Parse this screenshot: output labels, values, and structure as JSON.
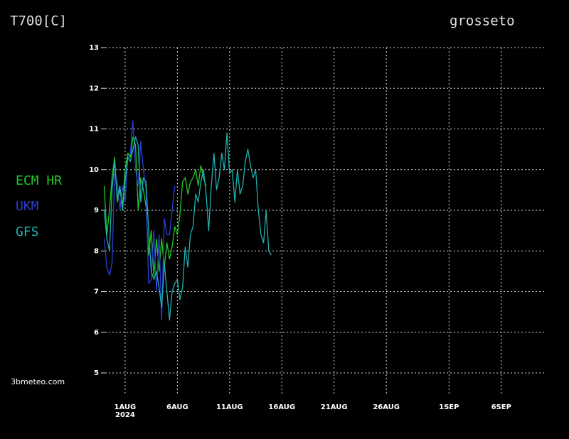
{
  "chart_data": {
    "type": "line",
    "title": "T700[C]",
    "location": "grosseto",
    "credit": "3bmeteo.com",
    "x_year_label": "2024",
    "x": [
      -1.0,
      -0.75,
      -0.5,
      -0.25,
      0,
      0.25,
      0.5,
      0.75,
      1.0,
      1.25,
      1.5,
      1.75,
      2.0,
      2.25,
      2.5,
      2.75,
      3.0,
      3.25,
      3.5,
      3.75,
      4.0,
      4.25,
      4.5,
      4.75,
      5.0,
      5.25,
      5.5,
      5.75,
      6.0,
      6.25,
      6.5,
      6.75,
      7.0,
      7.25,
      7.5,
      7.75,
      8.0,
      8.25,
      8.5,
      8.75,
      9.0,
      9.25,
      9.5,
      9.75,
      10.0,
      10.25,
      10.5,
      10.75,
      11.0,
      11.25,
      11.5,
      11.75,
      12.0,
      12.25,
      12.5,
      12.75,
      13.0,
      13.25,
      13.5,
      13.75,
      14.0,
      14.25,
      14.5,
      14.75,
      15.0
    ],
    "series": [
      {
        "name": "ECM HR",
        "color": "#22c922",
        "values": [
          9.6,
          8.4,
          9.0,
          9.8,
          10.3,
          9.2,
          9.5,
          9.1,
          10.0,
          10.4,
          10.3,
          10.8,
          10.6,
          9.0,
          9.8,
          9.5,
          9.1,
          7.9,
          8.5,
          7.4,
          8.3,
          7.5,
          8.3,
          7.6,
          8.2,
          7.8,
          8.1,
          8.6,
          8.4,
          8.9,
          9.7,
          9.8,
          9.4,
          9.7,
          9.8,
          10.0,
          9.6,
          10.1,
          9.8,
          9.6,
          null,
          null,
          null,
          null,
          null,
          null,
          null,
          null,
          null,
          null,
          null,
          null,
          null,
          null,
          null,
          null,
          null,
          null,
          null,
          null,
          null,
          null,
          null,
          null,
          null
        ]
      },
      {
        "name": "UKM",
        "color": "#2a3fd6",
        "values": [
          8.3,
          7.6,
          7.4,
          7.7,
          9.9,
          9.7,
          9.0,
          9.6,
          9.2,
          10.3,
          10.4,
          11.2,
          10.0,
          9.6,
          10.7,
          10.0,
          9.5,
          7.2,
          7.3,
          8.5,
          7.0,
          8.4,
          6.3,
          8.8,
          8.4,
          8.4,
          9.0,
          9.6,
          null,
          null,
          null,
          null,
          null,
          null,
          null,
          null,
          null,
          null,
          null,
          null,
          null,
          null,
          null,
          null,
          null,
          null,
          null,
          null,
          null,
          null,
          null,
          null,
          null,
          null,
          null,
          null,
          null,
          null,
          null,
          null,
          null,
          null,
          null,
          null,
          null
        ]
      },
      {
        "name": "GFS",
        "color": "#20b0b0",
        "values": [
          9.0,
          8.3,
          8.0,
          9.5,
          10.2,
          9.3,
          9.6,
          9.0,
          9.7,
          10.3,
          10.2,
          10.5,
          10.8,
          10.6,
          9.2,
          9.8,
          9.7,
          8.5,
          7.5,
          7.3,
          7.5,
          7.1,
          6.6,
          7.7,
          7.0,
          6.3,
          7.0,
          7.2,
          7.3,
          6.8,
          7.1,
          8.1,
          7.6,
          8.4,
          8.6,
          9.4,
          9.2,
          9.7,
          10.0,
          9.4,
          8.5,
          9.6,
          10.4,
          9.5,
          9.8,
          10.4,
          10.0,
          10.9,
          9.9,
          10.0,
          9.2,
          10.0,
          9.4,
          9.6,
          10.2,
          10.5,
          10.1,
          9.8,
          10.0,
          9.0,
          8.4,
          8.2,
          9.0,
          8.0,
          7.9
        ]
      }
    ],
    "xlim": [
      -0.9,
      41.1
    ],
    "xticks": [
      {
        "value": 1,
        "label": "1AUG"
      },
      {
        "value": 6,
        "label": "6AUG"
      },
      {
        "value": 11,
        "label": "11AUG"
      },
      {
        "value": 16,
        "label": "16AUG"
      },
      {
        "value": 21,
        "label": "21AUG"
      },
      {
        "value": 26,
        "label": "26AUG"
      },
      {
        "value": 32,
        "label": "1SEP"
      },
      {
        "value": 37,
        "label": "6SEP"
      }
    ],
    "ylim": [
      5,
      13
    ],
    "yticks": [
      5,
      6,
      7,
      8,
      9,
      10,
      11,
      12,
      13
    ],
    "grid": true
  }
}
